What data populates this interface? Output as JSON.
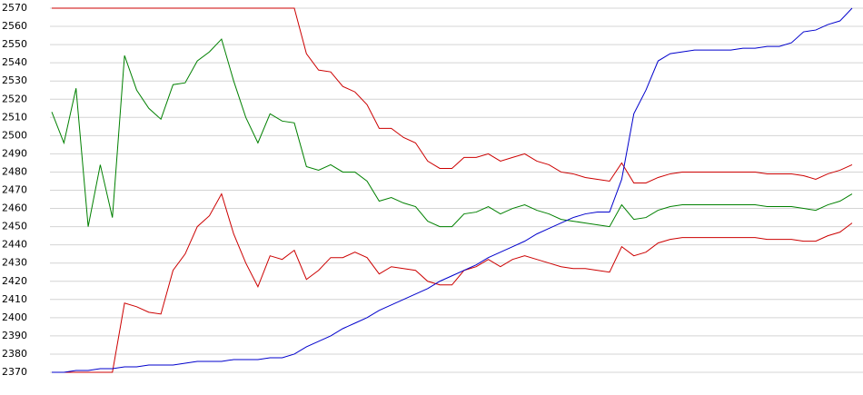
{
  "chart_data": {
    "type": "line",
    "categories": [
      null,
      null,
      null,
      null,
      null,
      null,
      null,
      null,
      null,
      null,
      null,
      null,
      null,
      null,
      null,
      null,
      null,
      null,
      null,
      null,
      null,
      null,
      null,
      null,
      null,
      null,
      null,
      null,
      null,
      null,
      null,
      null,
      null,
      null,
      null,
      null,
      null,
      null,
      null,
      null,
      null,
      null,
      null,
      null,
      null,
      null,
      null,
      null,
      null,
      null,
      null,
      null,
      null,
      null,
      null,
      null,
      null,
      null,
      null,
      null,
      null,
      null,
      null,
      null,
      null,
      null,
      null
    ],
    "series": [
      {
        "color": "#cc0000",
        "values": [
          2570,
          2570,
          2570,
          2570,
          2570,
          2570,
          2570,
          2570,
          2570,
          2570,
          2570,
          2570,
          2570,
          2570,
          2570,
          2570,
          2570,
          2570,
          2570,
          2570,
          2570,
          2545,
          2536,
          2535,
          2527,
          2524,
          2517,
          2504,
          2504,
          2499,
          2496,
          2486,
          2482,
          2482,
          2488,
          2488,
          2490,
          2486,
          2488,
          2490,
          2486,
          2484,
          2480,
          2479,
          2477,
          2476,
          2475,
          2485,
          2474,
          2474,
          2477,
          2479,
          2480,
          2480,
          2480,
          2480,
          2480,
          2480,
          2480,
          2479,
          2479,
          2479,
          2478,
          2476,
          2479,
          2481,
          2484
        ]
      },
      {
        "color": "#008000",
        "values": [
          2513,
          2496,
          2526,
          2450,
          2484,
          2455,
          2544,
          2525,
          2515,
          2509,
          2528,
          2529,
          2541,
          2546,
          2553,
          2530,
          2510,
          2496,
          2512,
          2508,
          2507,
          2483,
          2481,
          2484,
          2480,
          2480,
          2475,
          2464,
          2466,
          2463,
          2461,
          2453,
          2450,
          2450,
          2457,
          2458,
          2461,
          2457,
          2460,
          2462,
          2459,
          2457,
          2454,
          2453,
          2452,
          2451,
          2450,
          2462,
          2454,
          2455,
          2459,
          2461,
          2462,
          2462,
          2462,
          2462,
          2462,
          2462,
          2462,
          2461,
          2461,
          2461,
          2460,
          2459,
          2462,
          2464,
          2468
        ]
      },
      {
        "color": "#cc0000",
        "values": [
          2370,
          2370,
          2370,
          2370,
          2370,
          2370,
          2408,
          2406,
          2403,
          2402,
          2426,
          2435,
          2450,
          2456,
          2468,
          2446,
          2430,
          2417,
          2434,
          2432,
          2437,
          2421,
          2426,
          2433,
          2433,
          2436,
          2433,
          2424,
          2428,
          2427,
          2426,
          2420,
          2418,
          2418,
          2426,
          2428,
          2432,
          2428,
          2432,
          2434,
          2432,
          2430,
          2428,
          2427,
          2427,
          2426,
          2425,
          2439,
          2434,
          2436,
          2441,
          2443,
          2444,
          2444,
          2444,
          2444,
          2444,
          2444,
          2444,
          2443,
          2443,
          2443,
          2442,
          2442,
          2445,
          2447,
          2452
        ]
      },
      {
        "color": "#0000cc",
        "values": [
          2370,
          2370,
          2371,
          2371,
          2372,
          2372,
          2373,
          2373,
          2374,
          2374,
          2374,
          2375,
          2376,
          2376,
          2376,
          2377,
          2377,
          2377,
          2378,
          2378,
          2380,
          2384,
          2387,
          2390,
          2394,
          2397,
          2400,
          2404,
          2407,
          2410,
          2413,
          2416,
          2420,
          2423,
          2426,
          2429,
          2433,
          2436,
          2439,
          2442,
          2446,
          2449,
          2452,
          2455,
          2457,
          2458,
          2458,
          2476,
          2512,
          2525,
          2541,
          2545,
          2546,
          2547,
          2547,
          2547,
          2547,
          2548,
          2548,
          2549,
          2549,
          2551,
          2557,
          2558,
          2561,
          2563,
          2570
        ]
      }
    ],
    "ylim": [
      2370,
      2570
    ],
    "yticks": [
      2370,
      2380,
      2390,
      2400,
      2410,
      2420,
      2430,
      2440,
      2450,
      2460,
      2470,
      2480,
      2490,
      2500,
      2510,
      2520,
      2530,
      2540,
      2550,
      2560,
      2570
    ],
    "grid": true
  }
}
